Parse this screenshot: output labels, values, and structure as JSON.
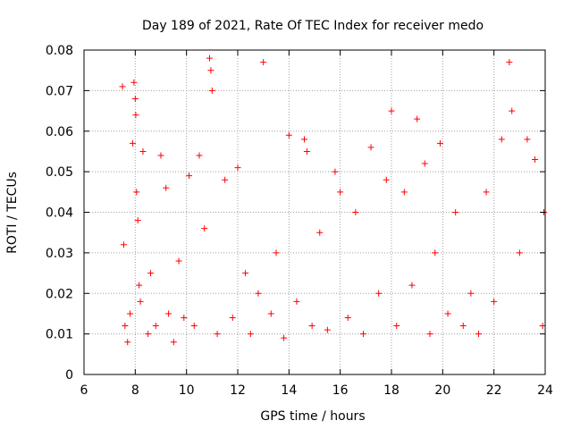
{
  "chart_data": {
    "type": "scatter",
    "title": "Day 189 of 2021, Rate Of TEC Index for receiver medo",
    "xlabel": "GPS time / hours",
    "ylabel": "ROTI / TECUs",
    "xlim": [
      6,
      24
    ],
    "ylim": [
      0,
      0.08
    ],
    "xticks": [
      6,
      8,
      10,
      12,
      14,
      16,
      18,
      20,
      22,
      24
    ],
    "xtick_labels": [
      "6",
      "8",
      "10",
      "12",
      "14",
      "16",
      "18",
      "20",
      "22",
      "24"
    ],
    "yticks": [
      0,
      0.01,
      0.02,
      0.03,
      0.04,
      0.05,
      0.06,
      0.07,
      0.08
    ],
    "ytick_labels": [
      "0",
      "0.01",
      "0.02",
      "0.03",
      "0.04",
      "0.05",
      "0.06",
      "0.07",
      "0.08"
    ],
    "grid": true,
    "marker": "plus",
    "color": "#ff0000",
    "series": [
      {
        "x": [
          7.5,
          7.55,
          7.6,
          7.7,
          7.8,
          7.9,
          7.95,
          8.0,
          8.02,
          8.05,
          8.1,
          8.15,
          8.2,
          8.3,
          8.5,
          8.6,
          8.8,
          9.0,
          9.2,
          9.3,
          9.5,
          9.7,
          9.9,
          10.1,
          10.3,
          10.5,
          10.7,
          10.9,
          10.95,
          11.0,
          11.2,
          11.5,
          11.8,
          12.0,
          12.3,
          12.5,
          12.8,
          13.0,
          13.3,
          13.5,
          13.8,
          14.0,
          14.3,
          14.6,
          14.7,
          14.9,
          15.2,
          15.5,
          15.8,
          16.0,
          16.3,
          16.6,
          16.9,
          17.2,
          17.5,
          17.8,
          18.0,
          18.2,
          18.5,
          18.8,
          19.0,
          19.3,
          19.5,
          19.7,
          19.9,
          20.2,
          20.5,
          20.8,
          21.1,
          21.4,
          21.7,
          22.0,
          22.3,
          22.6,
          22.7,
          23.0,
          23.3,
          23.6,
          23.9,
          23.95
        ],
        "y": [
          0.071,
          0.032,
          0.012,
          0.008,
          0.015,
          0.057,
          0.072,
          0.068,
          0.064,
          0.045,
          0.038,
          0.022,
          0.018,
          0.055,
          0.01,
          0.025,
          0.012,
          0.054,
          0.046,
          0.015,
          0.008,
          0.028,
          0.014,
          0.049,
          0.012,
          0.054,
          0.036,
          0.078,
          0.075,
          0.07,
          0.01,
          0.048,
          0.014,
          0.051,
          0.025,
          0.01,
          0.02,
          0.077,
          0.015,
          0.03,
          0.009,
          0.059,
          0.018,
          0.058,
          0.055,
          0.012,
          0.035,
          0.011,
          0.05,
          0.045,
          0.014,
          0.04,
          0.01,
          0.056,
          0.02,
          0.048,
          0.065,
          0.012,
          0.045,
          0.022,
          0.063,
          0.052,
          0.01,
          0.03,
          0.057,
          0.015,
          0.04,
          0.012,
          0.02,
          0.01,
          0.045,
          0.018,
          0.058,
          0.077,
          0.065,
          0.03,
          0.058,
          0.053,
          0.012,
          0.04
        ]
      }
    ]
  }
}
